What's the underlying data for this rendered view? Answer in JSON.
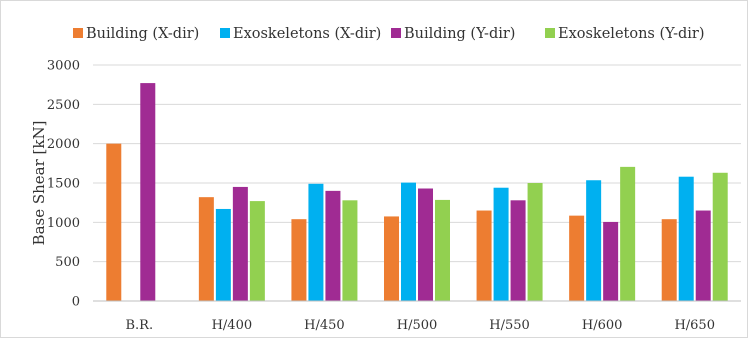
{
  "chart_data": {
    "type": "bar",
    "title": "",
    "xlabel": "",
    "ylabel": "Base Shear [kN]",
    "ylim": [
      0,
      3000
    ],
    "yticks": [
      0,
      500,
      1000,
      1500,
      2000,
      2500,
      3000
    ],
    "grid": true,
    "legend_position": "top",
    "categories": [
      "B.R.",
      "H/400",
      "H/450",
      "H/500",
      "H/550",
      "H/600",
      "H/650"
    ],
    "series": [
      {
        "name": "Building (X-dir)",
        "color": "#ED7D31",
        "values": [
          2000,
          1320,
          1040,
          1075,
          1150,
          1085,
          1040
        ]
      },
      {
        "name": "Exoskeletons (X-dir)",
        "color": "#00B0F0",
        "values": [
          null,
          1170,
          1490,
          1505,
          1440,
          1535,
          1580
        ]
      },
      {
        "name": "Building (Y-dir)",
        "color": "#A02B93",
        "values": [
          2770,
          1450,
          1400,
          1430,
          1280,
          1005,
          1150
        ]
      },
      {
        "name": "Exoskeletons (Y-dir)",
        "color": "#92D050",
        "values": [
          null,
          1270,
          1280,
          1285,
          1500,
          1705,
          1630
        ]
      }
    ]
  }
}
